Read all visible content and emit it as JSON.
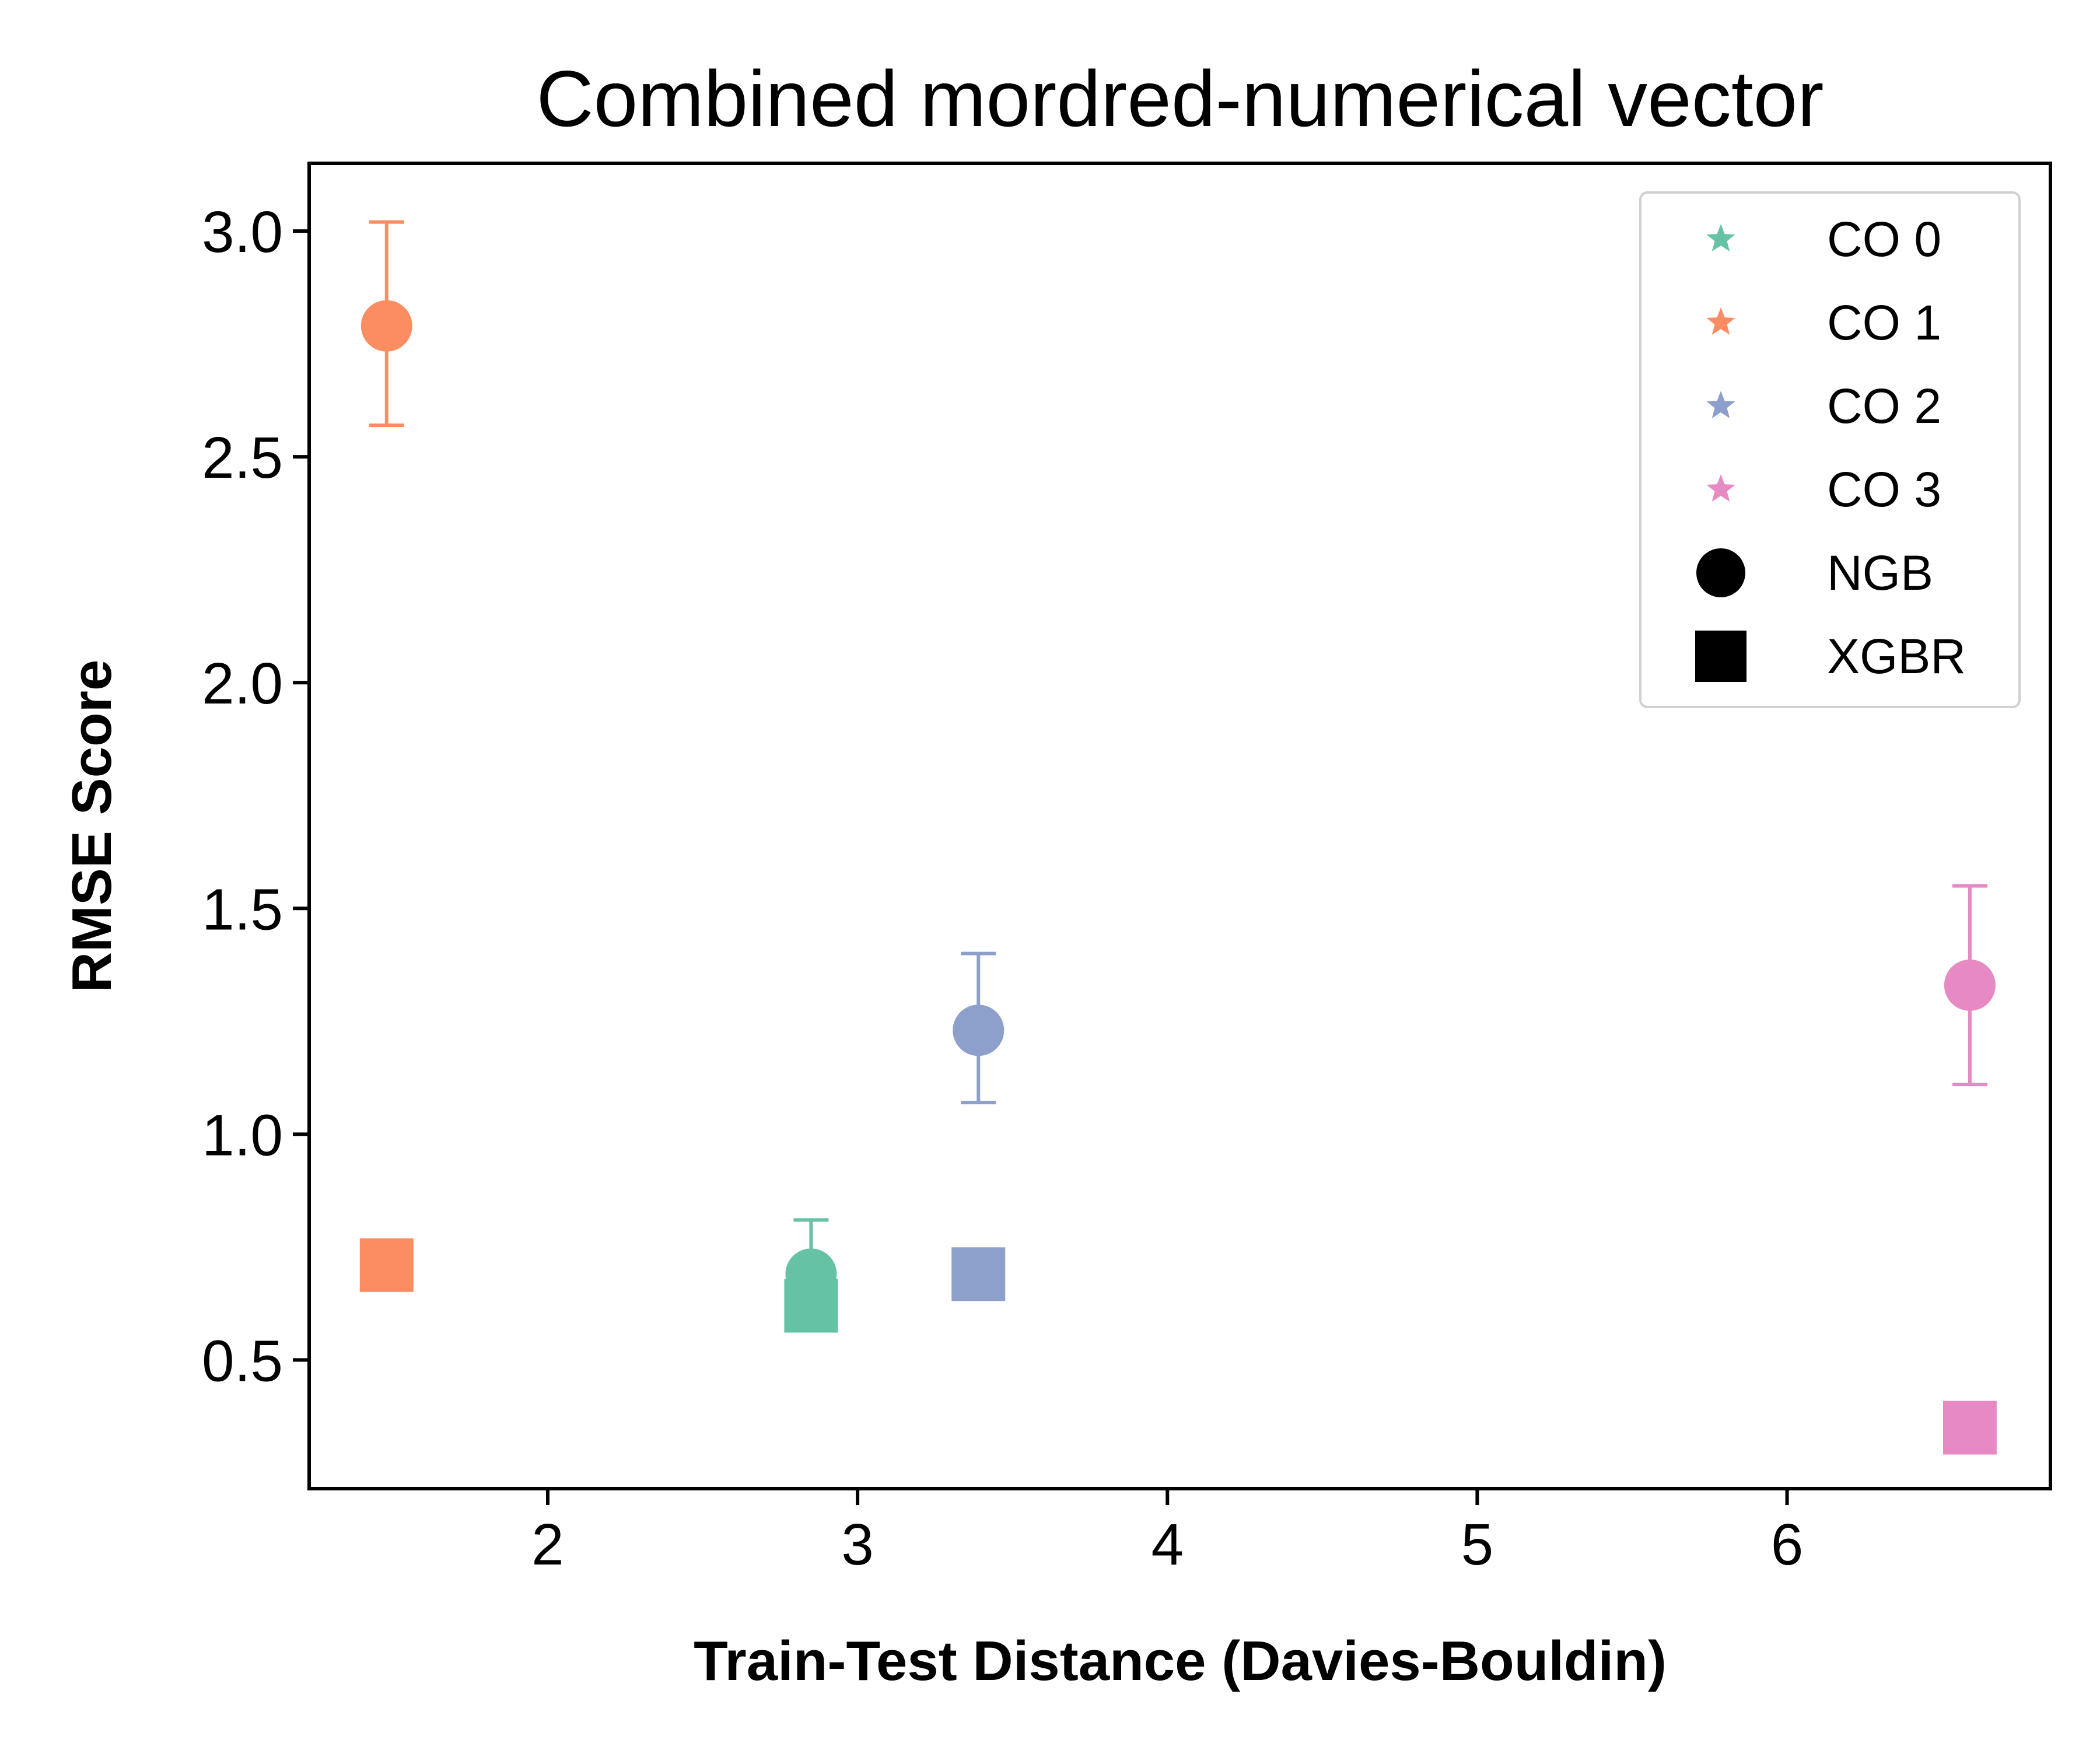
{
  "chart_data": {
    "type": "scatter",
    "title": "Combined mordred-numerical vector",
    "xlabel": "Train-Test Distance (Davies-Bouldin)",
    "ylabel": "RMSE Score",
    "xlim": [
      1.23,
      6.85
    ],
    "ylim": [
      0.215,
      3.15
    ],
    "xticks": [
      2,
      3,
      4,
      5,
      6
    ],
    "yticks": [
      0.5,
      1.0,
      1.5,
      2.0,
      2.5,
      3.0
    ],
    "xtick_labels": [
      "2",
      "3",
      "4",
      "5",
      "6"
    ],
    "ytick_labels": [
      "0.5",
      "1.0",
      "1.5",
      "2.0",
      "2.5",
      "3.0"
    ],
    "grid": false,
    "legend_position": "top-right",
    "groups": [
      {
        "label": "CO 0",
        "color": "#66c2a5"
      },
      {
        "label": "CO 1",
        "color": "#fc8d62"
      },
      {
        "label": "CO 2",
        "color": "#8da0cb"
      },
      {
        "label": "CO 3",
        "color": "#e78ac3"
      }
    ],
    "models": [
      {
        "label": "NGB",
        "marker": "circle"
      },
      {
        "label": "XGBR",
        "marker": "square"
      }
    ],
    "points": [
      {
        "group": "CO 1",
        "model": "NGB",
        "x": 1.48,
        "y": 2.79,
        "err_low": 2.57,
        "err_high": 3.02
      },
      {
        "group": "CO 1",
        "model": "XGBR",
        "x": 1.48,
        "y": 0.71
      },
      {
        "group": "CO 0",
        "model": "NGB",
        "x": 2.85,
        "y": 0.69,
        "err_low": 0.58,
        "err_high": 0.81
      },
      {
        "group": "CO 0",
        "model": "XGBR",
        "x": 2.85,
        "y": 0.62
      },
      {
        "group": "CO 2",
        "model": "NGB",
        "x": 3.39,
        "y": 1.23,
        "err_low": 1.07,
        "err_high": 1.4
      },
      {
        "group": "CO 2",
        "model": "XGBR",
        "x": 3.39,
        "y": 0.69
      },
      {
        "group": "CO 3",
        "model": "NGB",
        "x": 6.59,
        "y": 1.33,
        "err_low": 1.11,
        "err_high": 1.55
      },
      {
        "group": "CO 3",
        "model": "XGBR",
        "x": 6.59,
        "y": 0.35
      }
    ]
  }
}
